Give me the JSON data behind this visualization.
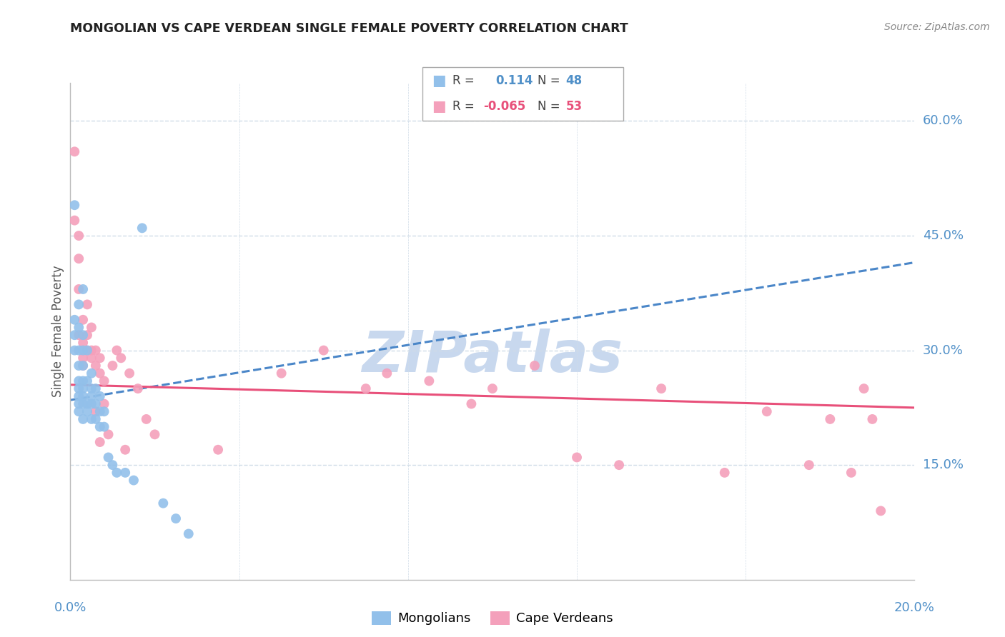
{
  "title": "MONGOLIAN VS CAPE VERDEAN SINGLE FEMALE POVERTY CORRELATION CHART",
  "source": "Source: ZipAtlas.com",
  "ylabel": "Single Female Poverty",
  "ytick_labels": [
    "15.0%",
    "30.0%",
    "45.0%",
    "60.0%"
  ],
  "ytick_values": [
    0.15,
    0.3,
    0.45,
    0.6
  ],
  "legend_blue": {
    "R": "0.114",
    "N": "48",
    "label": "Mongolians"
  },
  "legend_pink": {
    "R": "-0.065",
    "N": "53",
    "label": "Cape Verdeans"
  },
  "blue_color": "#92c0ea",
  "pink_color": "#f4a0bb",
  "trend_blue_color": "#4a86c8",
  "trend_pink_color": "#e8507a",
  "watermark_color": "#c8d8ee",
  "title_color": "#222222",
  "axis_label_color": "#5090c8",
  "grid_color": "#d0dce8",
  "mongolian_x": [
    0.001,
    0.001,
    0.001,
    0.001,
    0.002,
    0.002,
    0.002,
    0.002,
    0.002,
    0.002,
    0.002,
    0.002,
    0.002,
    0.003,
    0.003,
    0.003,
    0.003,
    0.003,
    0.003,
    0.003,
    0.003,
    0.003,
    0.004,
    0.004,
    0.004,
    0.004,
    0.005,
    0.005,
    0.005,
    0.005,
    0.005,
    0.006,
    0.006,
    0.006,
    0.007,
    0.007,
    0.007,
    0.008,
    0.008,
    0.009,
    0.01,
    0.011,
    0.013,
    0.015,
    0.017,
    0.022,
    0.025,
    0.028
  ],
  "mongolian_y": [
    0.49,
    0.34,
    0.32,
    0.3,
    0.36,
    0.33,
    0.3,
    0.28,
    0.26,
    0.25,
    0.24,
    0.23,
    0.22,
    0.38,
    0.32,
    0.3,
    0.28,
    0.26,
    0.25,
    0.24,
    0.23,
    0.21,
    0.3,
    0.26,
    0.23,
    0.22,
    0.27,
    0.25,
    0.24,
    0.23,
    0.21,
    0.25,
    0.23,
    0.21,
    0.24,
    0.22,
    0.2,
    0.22,
    0.2,
    0.16,
    0.15,
    0.14,
    0.14,
    0.13,
    0.46,
    0.1,
    0.08,
    0.06
  ],
  "capeverdean_x": [
    0.001,
    0.001,
    0.002,
    0.002,
    0.002,
    0.002,
    0.003,
    0.003,
    0.003,
    0.003,
    0.004,
    0.004,
    0.004,
    0.005,
    0.005,
    0.005,
    0.006,
    0.006,
    0.006,
    0.007,
    0.007,
    0.007,
    0.008,
    0.008,
    0.009,
    0.01,
    0.011,
    0.012,
    0.013,
    0.014,
    0.016,
    0.018,
    0.02,
    0.035,
    0.05,
    0.06,
    0.07,
    0.075,
    0.085,
    0.095,
    0.1,
    0.11,
    0.12,
    0.13,
    0.14,
    0.155,
    0.165,
    0.175,
    0.18,
    0.185,
    0.188,
    0.19,
    0.192
  ],
  "capeverdean_y": [
    0.56,
    0.47,
    0.45,
    0.42,
    0.38,
    0.32,
    0.34,
    0.31,
    0.29,
    0.28,
    0.36,
    0.32,
    0.3,
    0.33,
    0.3,
    0.29,
    0.3,
    0.28,
    0.22,
    0.29,
    0.27,
    0.18,
    0.26,
    0.23,
    0.19,
    0.28,
    0.3,
    0.29,
    0.17,
    0.27,
    0.25,
    0.21,
    0.19,
    0.17,
    0.27,
    0.3,
    0.25,
    0.27,
    0.26,
    0.23,
    0.25,
    0.28,
    0.16,
    0.15,
    0.25,
    0.14,
    0.22,
    0.15,
    0.21,
    0.14,
    0.25,
    0.21,
    0.09
  ],
  "xmin": 0.0,
  "xmax": 0.2,
  "ymin": 0.0,
  "ymax": 0.65,
  "trend_blue_x0": 0.0,
  "trend_blue_y0": 0.235,
  "trend_blue_x1": 0.2,
  "trend_blue_y1": 0.415,
  "trend_pink_x0": 0.0,
  "trend_pink_y0": 0.255,
  "trend_pink_x1": 0.2,
  "trend_pink_y1": 0.225
}
